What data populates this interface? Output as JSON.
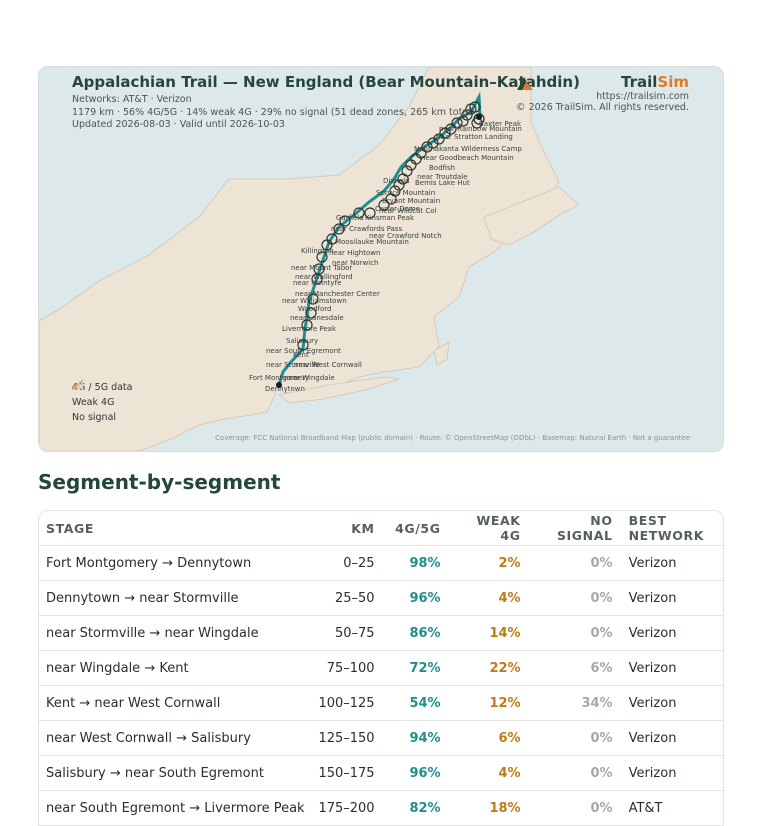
{
  "map": {
    "title": "Appalachian Trail — New England (Bear Mountain–Katahdin)",
    "networks": "Networks: AT&T · Verizon",
    "stats": "1179 km · 56% 4G/5G · 14% weak 4G · 29% no signal (51 dead zones, 265 km total)",
    "updated": "Updated 2026-08-03 · Valid until 2026-10-03",
    "brand": {
      "name_a": "Trail",
      "name_b": "Sim",
      "url": "https://trailsim.com",
      "copyright": "© 2026 TrailSim. All rights reserved."
    },
    "legend": [
      {
        "label": "4G / 5G data",
        "icon": "signal-bars-icon",
        "color": "#1f8f8f"
      },
      {
        "label": "Weak 4G",
        "icon": "weak-signal-icon",
        "color": "#e0902a"
      },
      {
        "label": "No signal",
        "icon": "no-signal-icon",
        "color": "#b9b2a6"
      }
    ],
    "attribution": "Coverage: FCC National Broadband Map (public domain) · Route: © OpenStreetMap (ODbL) · Basemap: Natural Earth · Not a guarantee",
    "place_labels": [
      "Baxter Peak",
      "near Rainbow Mountain",
      "near Stratton Landing",
      "Nahmakanta Wilderness Camp",
      "near Goodbeach Mountain",
      "Bodfish",
      "near Troutdale",
      "Bemis Lake Hut",
      "Dixfield",
      "Spruce Mountain",
      "Bryant Mountain",
      "Carter Dome",
      "near Wildcat Col",
      "Garfield",
      "Kinsman Peak",
      "near Crawford Notch",
      "near Crawfords Pass",
      "Moosilauke Mountain",
      "Killington",
      "near Hightown",
      "near Norwich",
      "near Mount Tabor",
      "near Wallingford",
      "near McIntyre",
      "near Manchester Center",
      "near Williamstown",
      "Woodford",
      "near Lanesdale",
      "Livermore Peak",
      "Salisbury",
      "Kent",
      "near South Egremont",
      "near West Cornwall",
      "near Stormville",
      "near Wingdale",
      "Fort Montgomery",
      "Dennytown"
    ],
    "colors": {
      "water": "#dde8ea",
      "land": "#ede4d6",
      "route": "#1f8f8f",
      "route_weak": "#e0902a"
    }
  },
  "segments": {
    "title": "Segment-by-segment",
    "headers": {
      "stage": "STAGE",
      "km": "KM",
      "good": "4G/5G",
      "weak": "WEAK 4G",
      "none": "NO SIGNAL",
      "network": "BEST NETWORK"
    },
    "rows": [
      {
        "stage": "Fort Montgomery → Dennytown",
        "km": "0–25",
        "good": "98%",
        "weak": "2%",
        "none": "0%",
        "network": "Verizon"
      },
      {
        "stage": "Dennytown → near Stormville",
        "km": "25–50",
        "good": "96%",
        "weak": "4%",
        "none": "0%",
        "network": "Verizon"
      },
      {
        "stage": "near Stormville → near Wingdale",
        "km": "50–75",
        "good": "86%",
        "weak": "14%",
        "none": "0%",
        "network": "Verizon"
      },
      {
        "stage": "near Wingdale → Kent",
        "km": "75–100",
        "good": "72%",
        "weak": "22%",
        "none": "6%",
        "network": "Verizon"
      },
      {
        "stage": "Kent → near West Cornwall",
        "km": "100–125",
        "good": "54%",
        "weak": "12%",
        "none": "34%",
        "network": "Verizon"
      },
      {
        "stage": "near West Cornwall → Salisbury",
        "km": "125–150",
        "good": "94%",
        "weak": "6%",
        "none": "0%",
        "network": "Verizon"
      },
      {
        "stage": "Salisbury → near South Egremont",
        "km": "150–175",
        "good": "96%",
        "weak": "4%",
        "none": "0%",
        "network": "Verizon"
      },
      {
        "stage": "near South Egremont → Livermore Peak",
        "km": "175–200",
        "good": "82%",
        "weak": "18%",
        "none": "0%",
        "network": "AT&T"
      }
    ]
  }
}
